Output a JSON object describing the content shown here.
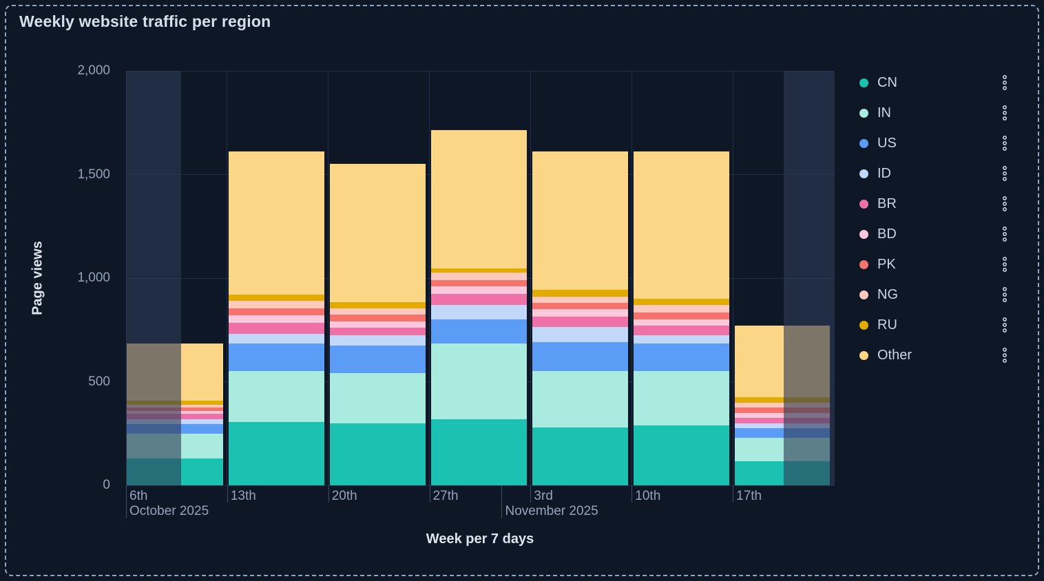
{
  "title": "Weekly website traffic per region",
  "chart_data": {
    "type": "bar",
    "stacked": true,
    "title": "Weekly website traffic per region",
    "xlabel": "Week per 7 days",
    "ylabel": "Page views",
    "ylim": [
      0,
      2000
    ],
    "grid": true,
    "legend_position": "right",
    "y_ticks": [
      {
        "value": 0,
        "label": "0"
      },
      {
        "value": 500,
        "label": "500"
      },
      {
        "value": 1000,
        "label": "1,000"
      },
      {
        "value": 1500,
        "label": "1,500"
      },
      {
        "value": 2000,
        "label": "2,000"
      }
    ],
    "categories": [
      "6th",
      "13th",
      "20th",
      "27th",
      "3rd",
      "10th",
      "17th"
    ],
    "month_labels": [
      {
        "text": "October 2025",
        "anchor": "first-week"
      },
      {
        "text": "November 2025",
        "anchor": "month-boundary-before-3rd"
      }
    ],
    "series": [
      {
        "name": "CN",
        "color": "#1bc2b1",
        "values": [
          130,
          305,
          300,
          320,
          280,
          290,
          115
        ]
      },
      {
        "name": "IN",
        "color": "#a9ecdf",
        "values": [
          120,
          245,
          240,
          365,
          270,
          260,
          115
        ]
      },
      {
        "name": "US",
        "color": "#5b9cf6",
        "values": [
          45,
          135,
          135,
          115,
          140,
          135,
          45
        ]
      },
      {
        "name": "ID",
        "color": "#c2d8fa",
        "values": [
          25,
          45,
          50,
          70,
          75,
          40,
          25
        ]
      },
      {
        "name": "BR",
        "color": "#ef71a8",
        "values": [
          25,
          55,
          35,
          55,
          50,
          45,
          25
        ]
      },
      {
        "name": "BD",
        "color": "#fcc8da",
        "values": [
          15,
          35,
          30,
          35,
          35,
          30,
          25
        ]
      },
      {
        "name": "PK",
        "color": "#f5736c",
        "values": [
          15,
          35,
          35,
          30,
          30,
          35,
          25
        ]
      },
      {
        "name": "NG",
        "color": "#fcc9bc",
        "values": [
          15,
          35,
          30,
          35,
          30,
          35,
          25
        ]
      },
      {
        "name": "RU",
        "color": "#e3aa00",
        "values": [
          20,
          30,
          30,
          20,
          35,
          30,
          25
        ]
      },
      {
        "name": "Other",
        "color": "#fcd687",
        "values": [
          275,
          690,
          665,
          670,
          665,
          710,
          345
        ]
      }
    ],
    "totals": [
      685,
      1610,
      1550,
      1715,
      1610,
      1610,
      770
    ],
    "out_of_range_shading": "left portion of first week and right portion of last week"
  },
  "legend": {
    "items": [
      {
        "label": "CN",
        "color": "#1bc2b1"
      },
      {
        "label": "IN",
        "color": "#a9ecdf"
      },
      {
        "label": "US",
        "color": "#5b9cf6"
      },
      {
        "label": "ID",
        "color": "#c2d8fa"
      },
      {
        "label": "BR",
        "color": "#ef71a8"
      },
      {
        "label": "BD",
        "color": "#fcc8da"
      },
      {
        "label": "PK",
        "color": "#f5736c"
      },
      {
        "label": "NG",
        "color": "#fcc9bc"
      },
      {
        "label": "RU",
        "color": "#e3aa00"
      },
      {
        "label": "Other",
        "color": "#fcd687"
      }
    ]
  }
}
